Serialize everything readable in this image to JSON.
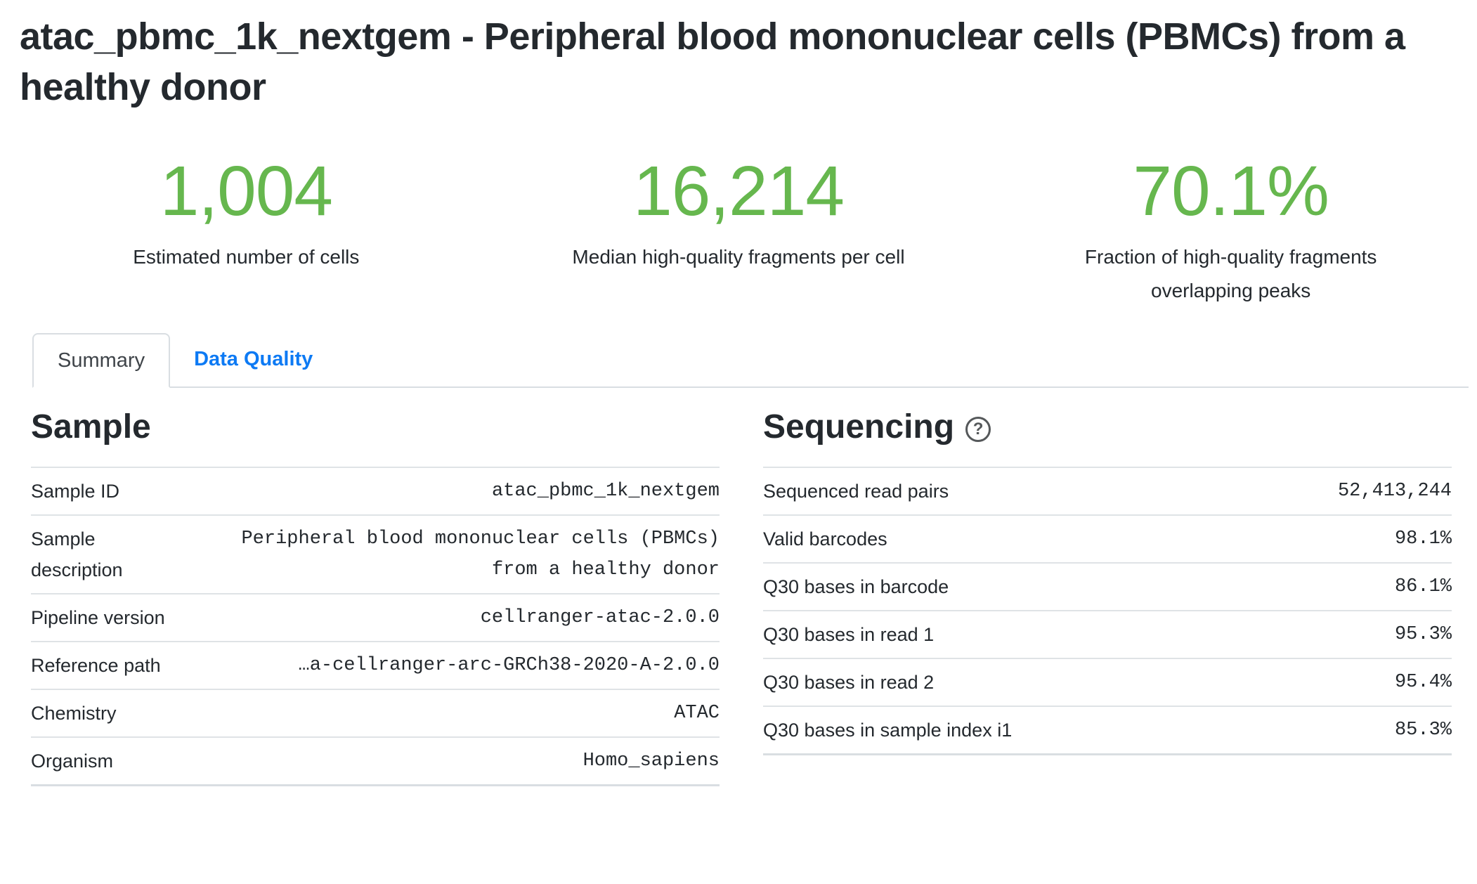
{
  "page": {
    "title": "atac_pbmc_1k_nextgem - Peripheral blood mononuclear cells (PBMCs) from a healthy donor"
  },
  "metrics": [
    {
      "value": "1,004",
      "label": "Estimated number of cells"
    },
    {
      "value": "16,214",
      "label": "Median high-quality fragments per cell"
    },
    {
      "value": "70.1%",
      "label": "Fraction of high-quality fragments overlapping peaks"
    }
  ],
  "tabs": [
    {
      "label": "Summary",
      "active": true
    },
    {
      "label": "Data Quality",
      "active": false
    }
  ],
  "sample": {
    "heading": "Sample",
    "rows": [
      {
        "label": "Sample ID",
        "value": "atac_pbmc_1k_nextgem"
      },
      {
        "label": "Sample description",
        "value": "Peripheral blood mononuclear cells (PBMCs)\nfrom a healthy donor"
      },
      {
        "label": "Pipeline version",
        "value": "cellranger-atac-2.0.0"
      },
      {
        "label": "Reference path",
        "value": "…a-cellranger-arc-GRCh38-2020-A-2.0.0"
      },
      {
        "label": "Chemistry",
        "value": "ATAC"
      },
      {
        "label": "Organism",
        "value": "Homo_sapiens"
      }
    ]
  },
  "sequencing": {
    "heading": "Sequencing",
    "help_icon": "question-circle-icon",
    "help_glyph": "?",
    "rows": [
      {
        "label": "Sequenced read pairs",
        "value": "52,413,244"
      },
      {
        "label": "Valid barcodes",
        "value": "98.1%"
      },
      {
        "label": "Q30 bases in barcode",
        "value": "86.1%"
      },
      {
        "label": "Q30 bases in read 1",
        "value": "95.3%"
      },
      {
        "label": "Q30 bases in read 2",
        "value": "95.4%"
      },
      {
        "label": "Q30 bases in sample index i1",
        "value": "85.3%"
      }
    ]
  },
  "colors": {
    "accent_green": "#66b74e",
    "link_blue": "#0d7af4",
    "text_dark": "#24292e",
    "border_light": "#dfe3e6"
  }
}
